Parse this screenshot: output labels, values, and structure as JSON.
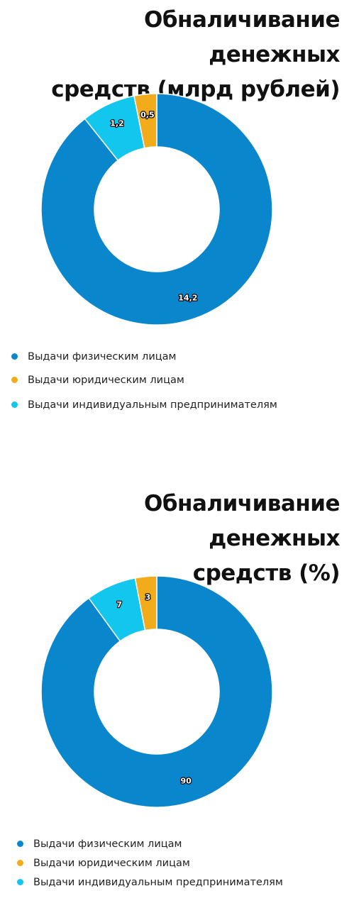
{
  "colors": {
    "physical": "#0a87cc",
    "legal": "#f2ac1b",
    "entrepreneurs": "#12c6ee",
    "separator": "#ffffff"
  },
  "chart_data": [
    {
      "type": "pie",
      "title": "Обналичивание денежных средств (млрд рублей)",
      "title_lines": [
        "Обналичивание денежных",
        "средств (млрд рублей)"
      ],
      "donut": true,
      "legend_position": "bottom-left",
      "slices": [
        {
          "label": "Выдачи физическим лицам",
          "value": 14.2,
          "display": "14,2",
          "color_key": "physical"
        },
        {
          "label": "Выдачи индивидуальным предпринимателям",
          "value": 1.2,
          "display": "1,2",
          "color_key": "entrepreneurs"
        },
        {
          "label": "Выдачи юридическим лицам",
          "value": 0.5,
          "display": "0,5",
          "color_key": "legal"
        }
      ],
      "legend": [
        {
          "label": "Выдачи физическим лицам",
          "color_key": "physical"
        },
        {
          "label": "Выдачи юридическим лицам",
          "color_key": "legal"
        },
        {
          "label": "Выдачи индивидуальным предпринимателям",
          "color_key": "entrepreneurs"
        }
      ]
    },
    {
      "type": "pie",
      "title": "Обналичивание денежных средств (%)",
      "title_lines": [
        "Обналичивание денежных",
        "средств (%)"
      ],
      "donut": true,
      "legend_position": "bottom-left",
      "slices": [
        {
          "label": "Выдачи физическим лицам",
          "value": 90,
          "display": "90",
          "color_key": "physical"
        },
        {
          "label": "Выдачи индивидуальным предпринимателям",
          "value": 7,
          "display": "7",
          "color_key": "entrepreneurs"
        },
        {
          "label": "Выдачи юридическим лицам",
          "value": 3,
          "display": "3",
          "color_key": "legal"
        }
      ],
      "legend": [
        {
          "label": "Выдачи физическим лицам",
          "color_key": "physical"
        },
        {
          "label": "Выдачи юридическим лицам",
          "color_key": "legal"
        },
        {
          "label": "Выдачи индивидуальным предпринимателям",
          "color_key": "entrepreneurs"
        }
      ]
    }
  ]
}
